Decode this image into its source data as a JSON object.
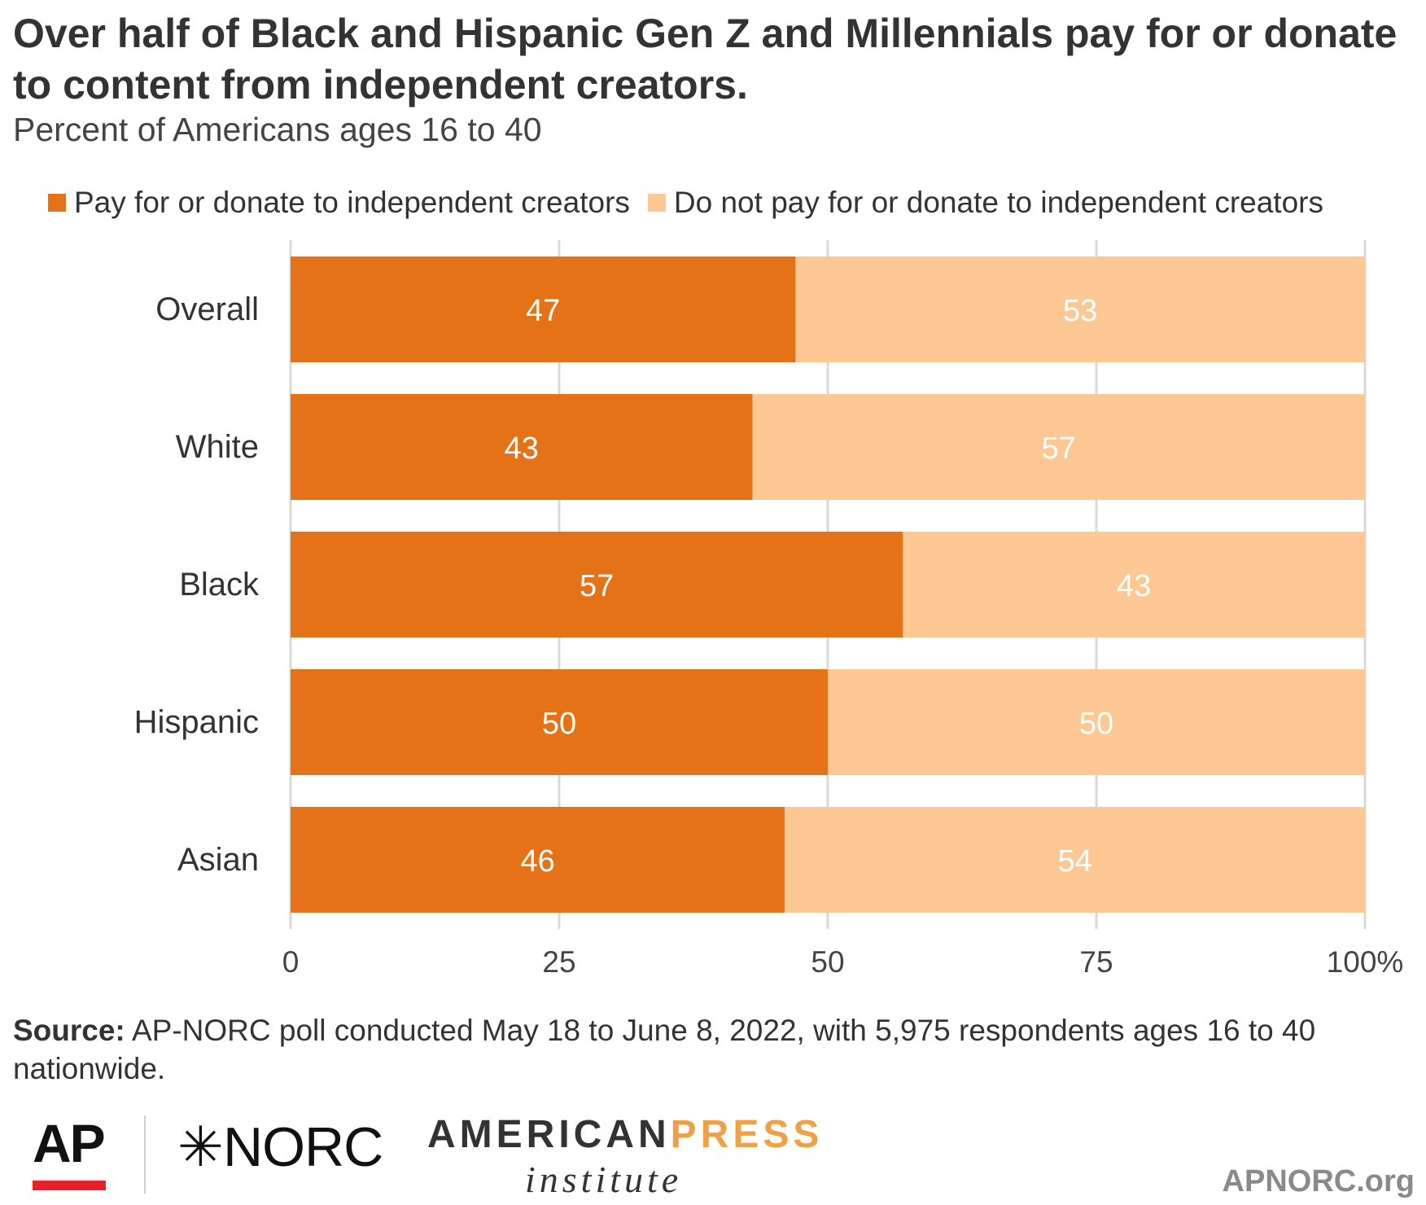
{
  "title": "Over half of Black and Hispanic Gen Z and Millennials pay for or donate to content from independent creators.",
  "subtitle": "Percent of Americans ages 16 to 40",
  "legend": {
    "pay": "Pay for or donate to independent creators",
    "notpay": "Do not pay for or donate to independent creators"
  },
  "colors": {
    "pay": "#e67217",
    "notpay": "#fdc894",
    "grid": "#d9d9d9",
    "label_on_bar": "#ffffff"
  },
  "chart_data": {
    "type": "bar",
    "orientation": "horizontal",
    "stacked": true,
    "categories": [
      "Overall",
      "White",
      "Black",
      "Hispanic",
      "Asian"
    ],
    "series": [
      {
        "name": "Pay for or donate to independent creators",
        "values": [
          47,
          43,
          57,
          50,
          46
        ]
      },
      {
        "name": "Do not pay for or donate to independent creators",
        "values": [
          53,
          57,
          43,
          50,
          54
        ]
      }
    ],
    "xlim": [
      0,
      100
    ],
    "xticks": [
      "0",
      "25",
      "50",
      "75",
      "100%"
    ],
    "grid": true,
    "legend_position": "top"
  },
  "source": {
    "label": "Source:",
    "text": " AP-NORC poll conducted May 18 to June 8, 2022, with 5,975 respondents ages 16 to 40 nationwide."
  },
  "logos": {
    "ap": "AP",
    "norc": "✳NORC",
    "api_main_1": "AMERICAN",
    "api_main_2": "PRESS",
    "api_sub": "institute",
    "site": "APNORC.org"
  }
}
